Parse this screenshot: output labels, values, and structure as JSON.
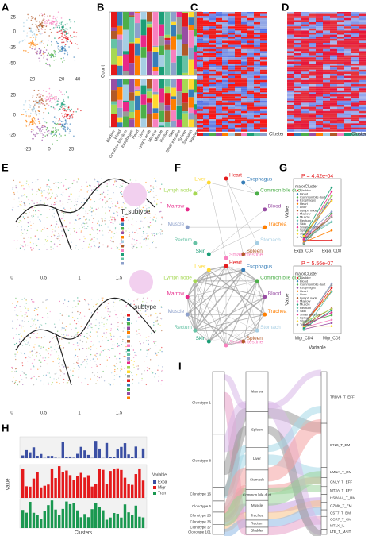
{
  "panel_labels": [
    "A",
    "B",
    "C",
    "D",
    "E",
    "F",
    "G",
    "H",
    "I"
  ],
  "a": {
    "top_yticks": [
      "25",
      "0",
      "-25",
      "-50"
    ],
    "top_xticks": [
      "-20",
      "20",
      "40"
    ],
    "bottom_yticks": [
      "25",
      "0",
      "-25"
    ],
    "bottom_xticks": [
      "-25",
      "0",
      "25"
    ]
  },
  "b": {
    "y_label": "Count",
    "tissues": [
      "Bladder",
      "Blood",
      "Common bile duct",
      "Esophagus",
      "Heart",
      "Liver",
      "Lymph node",
      "Marrow",
      "Muscle",
      "Rectum",
      "Skin",
      "Small intestine",
      "Spleen",
      "Stomach",
      "Trachea"
    ]
  },
  "c": {
    "legend": "Cluster"
  },
  "d": {
    "legend": "Cluster"
  },
  "e": {
    "legend_title": "T_subtype",
    "xticks": [
      "0",
      "0.5",
      "1",
      "1.5"
    ]
  },
  "f": {
    "nodes": [
      "Heart",
      "Esophagus",
      "Common bile duct",
      "Blood",
      "Trachea",
      "Stomach",
      "Spleen",
      "Small intestine",
      "Skin",
      "Rectum",
      "Muscle",
      "Marrow",
      "Lymph node",
      "Liver"
    ]
  },
  "g": {
    "top_p": "P = 4.42e-04",
    "bottom_p": "P = 5.56e-07",
    "legend_title": "majorCluster",
    "top_x": [
      "Expa_CD4",
      "Expa_CD8"
    ],
    "bottom_x": [
      "Migr_CD4",
      "Migr_CD8"
    ],
    "y_label": "Value",
    "x_label": "Variable"
  },
  "h": {
    "y_label": "Value",
    "x_label": "Clusters",
    "legend_title": "Variable",
    "legend_items": [
      "Expa",
      "Migr",
      "Tran"
    ]
  },
  "i": {
    "clonotypes": [
      "Clonotype 1",
      "Clonotype 8",
      "Clonotype 16",
      "Clonotype 5",
      "Clonotype 20",
      "Clonotype 36",
      "Clonotype 37",
      "Clonotype 101"
    ],
    "tissues": [
      "Marrow",
      "Spleen",
      "Liver",
      "Stomach",
      "Common bile duct",
      "Muscle",
      "Trachea",
      "Rectum",
      "Bladder"
    ],
    "subtypes": [
      "TRBV4_T_EFF",
      "IFNG_T_EM",
      "LMNA_T_RM",
      "GNLY_T_EFF",
      "MT2A_T_EFF",
      "HSPA1A_T_RM",
      "GZMK_T_EM",
      "CST7_T_EM",
      "CCR7_T_CM",
      "MT1X_IL",
      "LTB_T_MAIT"
    ]
  }
}
